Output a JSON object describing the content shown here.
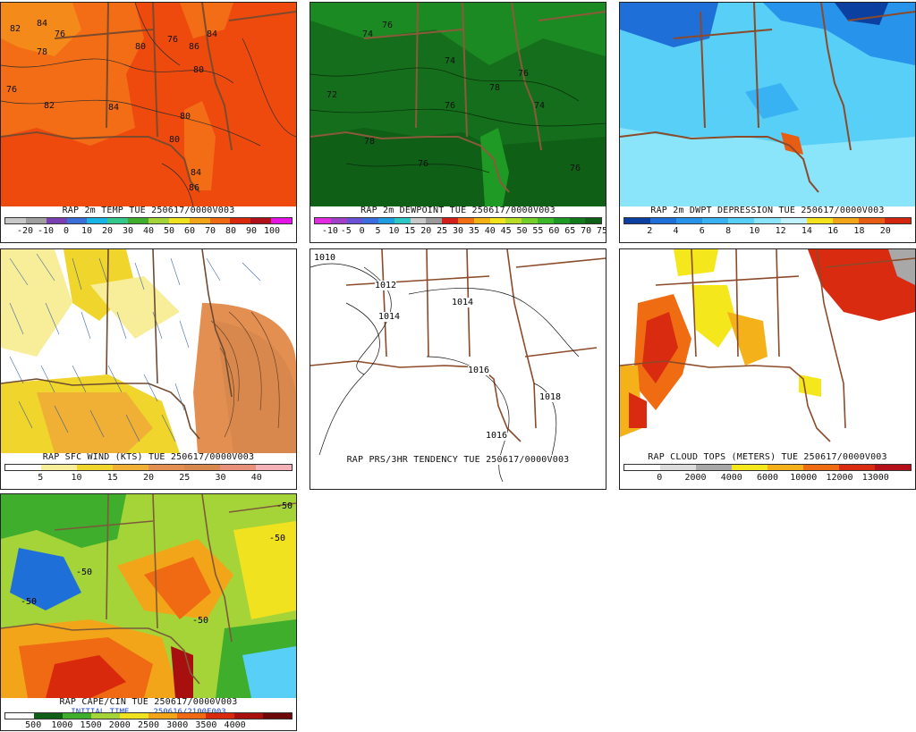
{
  "panels": [
    {
      "id": "temp",
      "title": "RAP 2m TEMP TUE 250617/0000V003",
      "scale": [
        "-20",
        "-10",
        "0",
        "10",
        "20",
        "30",
        "40",
        "50",
        "60",
        "70",
        "80",
        "90",
        "100"
      ],
      "scale_colors": [
        "#c8c8c8",
        "#9f9f9f",
        "#7a3fb0",
        "#3b6fd8",
        "#17b5e6",
        "#34c98c",
        "#3fae2c",
        "#a4d438",
        "#f0e21e",
        "#f3a51a",
        "#ef6a12",
        "#d9290d",
        "#b0101a",
        "#e414e6"
      ],
      "contours": [
        "82",
        "84",
        "76",
        "78",
        "80",
        "76",
        "86",
        "84",
        "80",
        "76",
        "82",
        "84",
        "80",
        "80",
        "84",
        "86"
      ]
    },
    {
      "id": "dewpoint",
      "title": "RAP 2m DEWPOINT TUE 250617/0000V003",
      "scale": [
        "-10",
        "-5",
        "0",
        "5",
        "10",
        "15",
        "20",
        "25",
        "30",
        "35",
        "40",
        "45",
        "50",
        "55",
        "60",
        "65",
        "70",
        "75"
      ],
      "scale_colors": [
        "#e12be0",
        "#a040c8",
        "#6a52d8",
        "#3a6ee0",
        "#1e9de0",
        "#2fc6c6",
        "#c8c8c8",
        "#9a9a9a",
        "#d21f1a",
        "#ef6f12",
        "#f4b315",
        "#f2e41c",
        "#b8dc28",
        "#74cf2b",
        "#3cb829",
        "#1d9a23",
        "#117b1c",
        "#0f5f17"
      ],
      "contours": [
        "74",
        "76",
        "74",
        "76",
        "78",
        "76",
        "72",
        "78",
        "76",
        "74",
        "76"
      ]
    },
    {
      "id": "dwpt-depression",
      "title": "RAP 2m DWPT DEPRESSION TUE 250617/0000V003",
      "scale": [
        "2",
        "4",
        "6",
        "8",
        "10",
        "12",
        "14",
        "16",
        "18",
        "20"
      ],
      "scale_colors": [
        "#0b3fa0",
        "#1f6fd8",
        "#2793ea",
        "#38b2f2",
        "#57cff6",
        "#8ae4fa",
        "#bff2fd",
        "#f4e21c",
        "#f2a51a",
        "#e85d14",
        "#d3260f"
      ]
    },
    {
      "id": "sfc-wind",
      "title": "RAP SFC WIND (KTS) TUE 250617/0000V003",
      "scale": [
        "5",
        "10",
        "15",
        "20",
        "25",
        "30",
        "40"
      ],
      "scale_colors": [
        "#ffffff",
        "#f8ee9a",
        "#f0d52c",
        "#f0b035",
        "#e48f52",
        "#d8884c",
        "#e9907a",
        "#f4b1b8"
      ]
    },
    {
      "id": "pressure-tendency",
      "title": "RAP PRS/3HR TENDENCY TUE 250617/0000V003",
      "contours": [
        "1010",
        "1012",
        "1014",
        "1014",
        "1016",
        "1016",
        "1018"
      ]
    },
    {
      "id": "cloud-tops",
      "title": "RAP CLOUD TOPS (METERS) TUE 250617/0000V003",
      "scale": [
        "0",
        "2000",
        "4000",
        "6000",
        "10000",
        "12000",
        "13000"
      ],
      "scale_colors": [
        "#ffffff",
        "#dcdcdc",
        "#a8a8a8",
        "#f4e71c",
        "#f4b11a",
        "#ef6c12",
        "#d92b10",
        "#b5101a"
      ]
    },
    {
      "id": "cape-cin",
      "title": "RAP CAPE/CIN TUE 250617/0000V003",
      "subtitle_left": "INITIAL TIME",
      "subtitle_right": "250616/2100F003",
      "scale": [
        "500",
        "1000",
        "1500",
        "2000",
        "2500",
        "3000",
        "3500",
        "4000"
      ],
      "scale_colors": [
        "#ffffff",
        "#0f5f17",
        "#3fae2c",
        "#a4d438",
        "#f0e21e",
        "#f3a51a",
        "#ef6a12",
        "#d9290d",
        "#a8100f",
        "#6c0808"
      ],
      "contours": [
        "-50",
        "-50",
        "-50",
        "-50",
        "-50"
      ]
    }
  ]
}
